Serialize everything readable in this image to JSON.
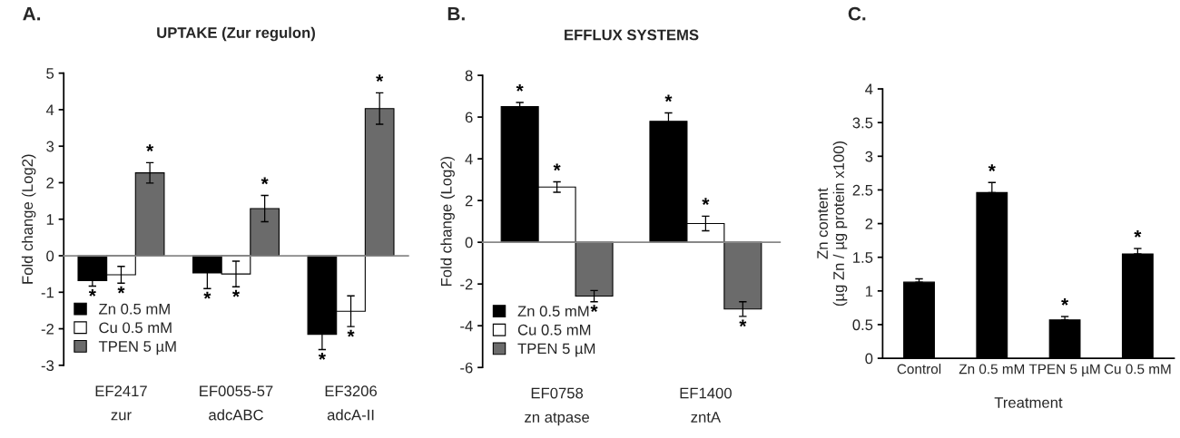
{
  "chart_data": [
    {
      "type": "bar",
      "title": "UPTAKE (Zur regulon)",
      "ylabel": "Fold change (Log2)",
      "categories": [
        "EF2417\nzur",
        "EF0055-57\nadcABC",
        "EF3206\nadcA-II"
      ],
      "series": [
        {
          "name": "Zn 0.5 mM",
          "color": "#000000",
          "values": [
            -0.68,
            -0.47,
            -2.15
          ],
          "errors": [
            0.15,
            0.43,
            0.42
          ],
          "value_labels": [
            "*",
            "*",
            "*"
          ]
        },
        {
          "name": "Cu 0.5 mM",
          "color": "#ffffff",
          "values": [
            -0.52,
            -0.5,
            -1.52
          ],
          "errors": [
            0.23,
            0.35,
            0.42
          ],
          "value_labels": [
            "*",
            "*",
            "*"
          ]
        },
        {
          "name": "TPEN 5 µM",
          "color": "#6b6b6b",
          "values": [
            2.27,
            1.29,
            4.03
          ],
          "errors": [
            0.28,
            0.36,
            0.43
          ],
          "value_labels": [
            "*",
            "*",
            "*"
          ]
        }
      ],
      "ylim": [
        -3,
        5
      ],
      "yticks": [
        -3,
        -2,
        -1,
        0,
        1,
        2,
        3,
        4,
        5
      ],
      "legend": "bottom left",
      "annotations": [
        "A."
      ]
    },
    {
      "type": "bar",
      "title": "EFFLUX SYSTEMS",
      "ylabel": "Fold change (Log2)",
      "categories": [
        "EF0758\nzn atpase",
        "EF1400\nzntA"
      ],
      "series": [
        {
          "name": "Zn 0.5 mM",
          "color": "#000000",
          "values": [
            6.5,
            5.8
          ],
          "errors": [
            0.2,
            0.4
          ],
          "value_labels": [
            "*",
            "*"
          ]
        },
        {
          "name": "Cu 0.5 mM",
          "color": "#ffffff",
          "values": [
            2.65,
            0.9
          ],
          "errors": [
            0.25,
            0.35
          ],
          "value_labels": [
            "*",
            "*"
          ]
        },
        {
          "name": "TPEN 5 µM",
          "color": "#6b6b6b",
          "values": [
            -2.58,
            -3.2
          ],
          "errors": [
            0.27,
            0.35
          ],
          "value_labels": [
            "*",
            "*"
          ]
        }
      ],
      "ylim": [
        -6,
        8
      ],
      "yticks": [
        -6,
        -4,
        -2,
        0,
        2,
        4,
        6,
        8
      ],
      "legend": "bottom left",
      "annotations": [
        "B."
      ]
    },
    {
      "type": "bar",
      "ylabel": "Zn content\n(µg Zn / µg protein x100)",
      "xlabel": "Treatment",
      "categories": [
        "Control",
        "Zn 0.5 mM",
        "TPEN 5 µM",
        "Cu 0.5 mM"
      ],
      "values": [
        1.13,
        2.46,
        0.57,
        1.55
      ],
      "color": "#000000",
      "errors": [
        [
          1.13,
          1.18
        ],
        [
          2.46,
          2.61
        ],
        [
          0.57,
          0.62
        ],
        [
          1.55,
          1.63
        ]
      ],
      "value_labels": [
        null,
        "*",
        "*",
        "*"
      ],
      "ylim": [
        0,
        4
      ],
      "yticks": [
        0,
        0.5,
        1,
        1.5,
        2,
        2.5,
        3,
        3.5,
        4
      ],
      "annotations": [
        "C."
      ]
    }
  ]
}
